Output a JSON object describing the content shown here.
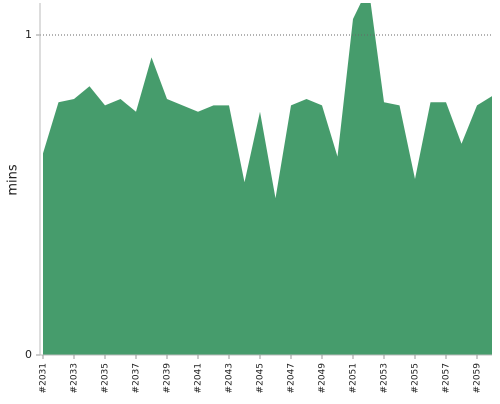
{
  "chart_data": {
    "type": "area",
    "y_label": "mins",
    "categories": [
      "#2031",
      null,
      "#2033",
      null,
      "#2035",
      null,
      "#2037",
      null,
      "#2039",
      null,
      "#2041",
      null,
      "#2043",
      null,
      "#2045",
      null,
      "#2047",
      null,
      "#2049",
      null,
      "#2051",
      null,
      "#2053",
      null,
      "#2055",
      null,
      "#2057",
      null,
      "#2059",
      null
    ],
    "values": [
      0.63,
      0.79,
      0.8,
      0.84,
      0.78,
      0.8,
      0.76,
      0.93,
      0.8,
      0.78,
      0.76,
      0.78,
      0.78,
      0.54,
      0.76,
      0.49,
      0.78,
      0.8,
      0.78,
      0.62,
      1.05,
      1.15,
      0.79,
      0.78,
      0.55,
      0.79,
      0.79,
      0.66,
      0.78,
      0.81
    ],
    "color": "#469c6c",
    "ylim": [
      0,
      1.1
    ],
    "yticks": [
      0,
      1
    ],
    "grid": true
  }
}
